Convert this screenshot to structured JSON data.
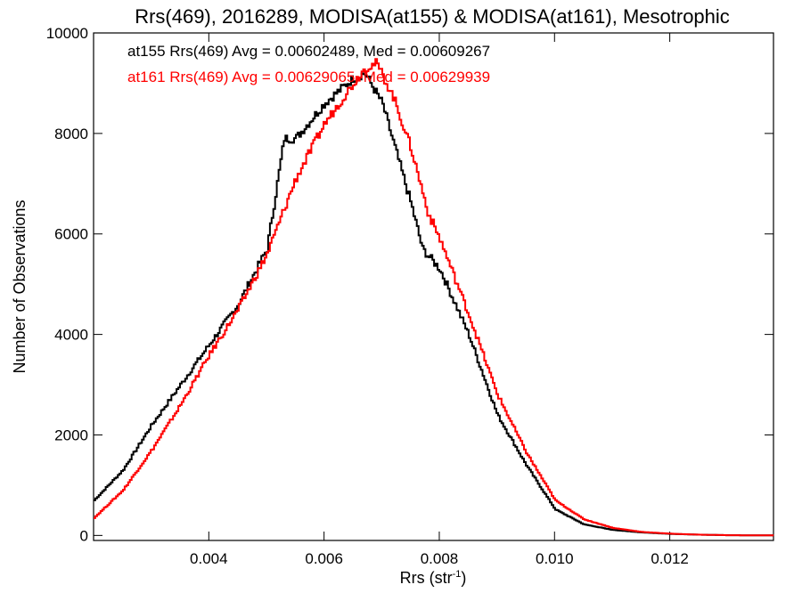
{
  "chart_data": {
    "type": "line",
    "title": "Rrs(469), 2016289, MODISA(at155) & MODISA(at161), Mesotrophic",
    "xlabel_main": "Rrs (str",
    "xlabel_sup": "-1",
    "xlabel_close": ")",
    "ylabel": "Number of Observations",
    "xlim": [
      0.002,
      0.0138
    ],
    "ylim": [
      -100,
      10000
    ],
    "x_ticks": [
      0.004,
      0.006,
      0.008,
      0.01,
      0.012
    ],
    "x_tick_labels": [
      "0.004",
      "0.006",
      "0.008",
      "0.010",
      "0.012"
    ],
    "y_ticks": [
      0,
      2000,
      4000,
      6000,
      8000,
      10000
    ],
    "y_tick_labels": [
      "0",
      "2000",
      "4000",
      "6000",
      "8000",
      "10000"
    ],
    "grid": false,
    "legend_position": "top-left",
    "series": [
      {
        "name": "at155",
        "color": "#000000",
        "legend": "at155 Rrs(469) Avg = 0.00602489, Med = 0.00609267",
        "x": [
          0.002,
          0.0025,
          0.003,
          0.0035,
          0.004,
          0.0045,
          0.005,
          0.0053,
          0.0055,
          0.006,
          0.0065,
          0.0067,
          0.0068,
          0.007,
          0.0072,
          0.0075,
          0.0077,
          0.008,
          0.0085,
          0.009,
          0.0095,
          0.01,
          0.0105,
          0.011,
          0.0115,
          0.012,
          0.0125,
          0.013,
          0.0138
        ],
        "y": [
          700,
          1300,
          2200,
          3000,
          3800,
          4600,
          5700,
          7900,
          7900,
          8600,
          9100,
          9200,
          9000,
          8600,
          7800,
          6600,
          5700,
          5300,
          4000,
          2400,
          1400,
          520,
          220,
          110,
          60,
          30,
          15,
          5,
          0
        ]
      },
      {
        "name": "at161",
        "color": "#ff0000",
        "legend": "at161 Rrs(469) Avg = 0.00629065, Med = 0.00629939",
        "x": [
          0.002,
          0.0025,
          0.003,
          0.0035,
          0.004,
          0.0045,
          0.005,
          0.0055,
          0.006,
          0.0065,
          0.0067,
          0.0069,
          0.0072,
          0.0075,
          0.0078,
          0.008,
          0.0085,
          0.009,
          0.0095,
          0.01,
          0.0105,
          0.011,
          0.0115,
          0.012,
          0.0125,
          0.013,
          0.0138
        ],
        "y": [
          350,
          900,
          1700,
          2600,
          3600,
          4500,
          5600,
          7100,
          8200,
          9000,
          9300,
          9400,
          8700,
          7700,
          6400,
          5900,
          4400,
          2800,
          1650,
          700,
          320,
          150,
          70,
          35,
          15,
          5,
          0
        ]
      }
    ]
  }
}
